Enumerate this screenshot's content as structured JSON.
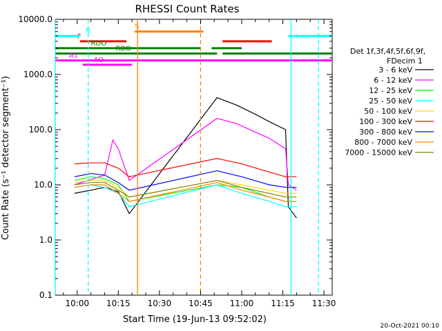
{
  "chart_data": {
    "type": "line",
    "title": "RHESSI Count Rates",
    "xlabel": "Start Time (19-Jun-13 09:52:02)",
    "ylabel": "Count Rate (s⁻¹ detector segment⁻¹)",
    "y_scale": "log",
    "ylim": [
      0.1,
      10000
    ],
    "xlim": [
      "09:52",
      "11:33"
    ],
    "x_ticks": [
      "10:00",
      "10:15",
      "10:30",
      "10:45",
      "11:00",
      "11:15",
      "11:30"
    ],
    "y_ticks": [
      "0.1",
      "1.0",
      "10.0",
      "100.0",
      "1000.0",
      "10000.0"
    ],
    "legend_header": [
      "Det 1f,3f,4f,5f,6f,9f,",
      "FDecim 1"
    ],
    "legend_position": "right",
    "footer": "20-Oct-2021 00:10",
    "series": [
      {
        "name": "3 - 6 keV",
        "color": "#000000",
        "values": [
          [
            "09:59",
            7
          ],
          [
            "10:05",
            8
          ],
          [
            "10:10",
            9
          ],
          [
            "10:15",
            7.5
          ],
          [
            "10:19",
            3
          ],
          [
            "10:51",
            380
          ],
          [
            "10:58",
            280
          ],
          [
            "11:05",
            190
          ],
          [
            "11:10",
            140
          ],
          [
            "11:16",
            100
          ],
          [
            "11:17",
            4
          ],
          [
            "11:20",
            2.5
          ]
        ]
      },
      {
        "name": "6 - 12 keV",
        "color": "#ff00ff",
        "values": [
          [
            "09:59",
            10
          ],
          [
            "10:04",
            12
          ],
          [
            "10:10",
            15
          ],
          [
            "10:13",
            65
          ],
          [
            "10:15",
            45
          ],
          [
            "10:19",
            12
          ],
          [
            "10:51",
            160
          ],
          [
            "10:58",
            130
          ],
          [
            "11:05",
            90
          ],
          [
            "11:10",
            70
          ],
          [
            "11:16",
            45
          ],
          [
            "11:17",
            10
          ],
          [
            "11:20",
            8
          ]
        ]
      },
      {
        "name": "12 - 25 keV",
        "color": "#00ff00",
        "values": [
          [
            "09:59",
            12
          ],
          [
            "10:05",
            14
          ],
          [
            "10:10",
            13
          ],
          [
            "10:15",
            10
          ],
          [
            "10:19",
            5
          ],
          [
            "10:51",
            10
          ],
          [
            "11:00",
            9
          ],
          [
            "11:10",
            6
          ],
          [
            "11:16",
            5
          ],
          [
            "11:20",
            5
          ]
        ]
      },
      {
        "name": "25 - 50 keV",
        "color": "#00ffff",
        "values": [
          [
            "09:59",
            9
          ],
          [
            "10:05",
            10
          ],
          [
            "10:10",
            9
          ],
          [
            "10:15",
            7
          ],
          [
            "10:19",
            4
          ],
          [
            "10:51",
            10
          ],
          [
            "11:00",
            7
          ],
          [
            "11:10",
            5
          ],
          [
            "11:16",
            4
          ],
          [
            "11:20",
            4
          ]
        ]
      },
      {
        "name": "50 - 100 keV",
        "color": "#ffd700",
        "values": [
          [
            "09:59",
            11
          ],
          [
            "10:05",
            12
          ],
          [
            "10:10",
            12
          ],
          [
            "10:15",
            9
          ],
          [
            "10:19",
            6
          ],
          [
            "10:51",
            12
          ],
          [
            "11:00",
            10
          ],
          [
            "11:10",
            8
          ],
          [
            "11:16",
            7
          ],
          [
            "11:20",
            7
          ]
        ]
      },
      {
        "name": "100 - 300 keV",
        "color": "#ff0000",
        "values": [
          [
            "09:59",
            24
          ],
          [
            "10:05",
            25
          ],
          [
            "10:10",
            25
          ],
          [
            "10:15",
            20
          ],
          [
            "10:19",
            14
          ],
          [
            "10:51",
            30
          ],
          [
            "11:00",
            24
          ],
          [
            "11:10",
            17
          ],
          [
            "11:16",
            14
          ],
          [
            "11:20",
            14
          ]
        ]
      },
      {
        "name": "300 - 800 keV",
        "color": "#0000ff",
        "values": [
          [
            "09:59",
            14
          ],
          [
            "10:05",
            16
          ],
          [
            "10:10",
            15
          ],
          [
            "10:15",
            11
          ],
          [
            "10:19",
            8
          ],
          [
            "10:51",
            18
          ],
          [
            "11:00",
            14
          ],
          [
            "11:10",
            10
          ],
          [
            "11:16",
            9
          ],
          [
            "11:20",
            9
          ]
        ]
      },
      {
        "name": "800 - 7000 keV",
        "color": "#ff8000",
        "values": [
          [
            "09:59",
            9
          ],
          [
            "10:05",
            10
          ],
          [
            "10:10",
            10
          ],
          [
            "10:15",
            7
          ],
          [
            "10:19",
            5
          ],
          [
            "10:51",
            11
          ],
          [
            "11:00",
            8
          ],
          [
            "11:10",
            6
          ],
          [
            "11:16",
            5
          ],
          [
            "11:20",
            5
          ]
        ]
      },
      {
        "name": "7000 - 15000 keV",
        "color": "#808000",
        "values": [
          [
            "09:59",
            10
          ],
          [
            "10:05",
            11
          ],
          [
            "10:10",
            11
          ],
          [
            "10:15",
            8
          ],
          [
            "10:19",
            6
          ],
          [
            "10:51",
            12
          ],
          [
            "11:00",
            9
          ],
          [
            "11:10",
            7
          ],
          [
            "11:16",
            6
          ],
          [
            "11:20",
            6
          ]
        ]
      }
    ],
    "flags": [
      {
        "label": "F",
        "color": "#ff0000",
        "y": 4000,
        "x_label": "10:00",
        "spans": [
          [
            "10:01",
            "10:18"
          ],
          [
            "10:53",
            "11:11"
          ]
        ]
      },
      {
        "label": "N",
        "color": "#00ffff",
        "y": 5000,
        "x_label": "10:03",
        "spans": [
          [
            "09:52",
            "10:01"
          ],
          [
            "11:17",
            "11:33"
          ]
        ]
      },
      {
        "label": "S",
        "color": "#ff8000",
        "y": 6000,
        "x_label": "10:21",
        "spans": [
          [
            "10:21",
            "10:46"
          ]
        ]
      },
      {
        "label": "RDO",
        "color": "#008000",
        "y": 3000,
        "x_label": "10:05",
        "spans": [
          [
            "09:52",
            "10:45"
          ],
          [
            "10:49",
            "11:00"
          ]
        ]
      },
      {
        "label": "RDO",
        "color": "#008000",
        "y": 2400,
        "x_label": "10:14",
        "spans": [
          [
            "09:52",
            "10:45"
          ],
          [
            "10:45",
            "10:51"
          ],
          [
            "10:53",
            "11:33"
          ]
        ]
      },
      {
        "label": "AO",
        "color": "#ff00ff",
        "y": 1500,
        "x_label": "10:06",
        "spans": [
          [
            "10:02",
            "10:20"
          ]
        ]
      },
      {
        "label": "A1",
        "color": "#ff00ff",
        "y": 1800,
        "x_label": "09:57",
        "spans": [
          [
            "09:52",
            "11:33"
          ]
        ]
      }
    ],
    "event_lines": [
      {
        "time": "09:52",
        "color": "#00ffff",
        "style": "solid"
      },
      {
        "time": "10:04",
        "color": "#00ffff",
        "style": "dashed"
      },
      {
        "time": "10:22",
        "color": "#ff8000",
        "style": "solid"
      },
      {
        "time": "10:45",
        "color": "#ff8000",
        "style": "dashed"
      },
      {
        "time": "11:18",
        "color": "#00ffff",
        "style": "solid"
      },
      {
        "time": "11:28",
        "color": "#00ffff",
        "style": "dashed"
      }
    ]
  }
}
